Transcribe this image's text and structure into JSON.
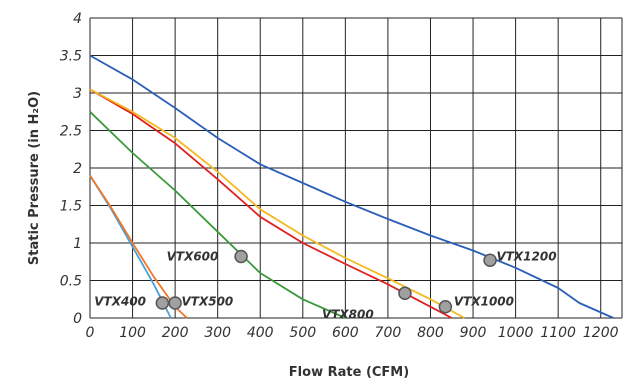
{
  "chart_data": {
    "type": "line",
    "title": "",
    "xlabel": "Flow Rate (CFM)",
    "ylabel": "Static Pressure (in H₂O)",
    "xlim": [
      0,
      1250
    ],
    "ylim": [
      0,
      4
    ],
    "xticks": [
      0,
      100,
      200,
      300,
      400,
      500,
      600,
      700,
      800,
      900,
      1000,
      1100,
      1200
    ],
    "yticks": [
      0,
      0.5,
      1,
      1.5,
      2,
      2.5,
      3,
      3.5,
      4
    ],
    "xtick_labels": [
      "0",
      "100",
      "200",
      "300",
      "400",
      "500",
      "600",
      "700",
      "800",
      "900",
      "1000",
      "1100",
      "1200"
    ],
    "ytick_labels": [
      "0",
      "0.5",
      "1",
      "1.5",
      "2",
      "2.5",
      "3",
      "3.5",
      "4"
    ],
    "grid": true,
    "legend": "none",
    "series": [
      {
        "name": "VTX400",
        "color": "#4a9fd8",
        "points": [
          [
            0,
            1.9
          ],
          [
            50,
            1.45
          ],
          [
            100,
            0.95
          ],
          [
            150,
            0.45
          ],
          [
            190,
            0
          ]
        ],
        "marker": [
          170,
          0.2
        ]
      },
      {
        "name": "VTX500",
        "color": "#f07828",
        "points": [
          [
            0,
            1.9
          ],
          [
            50,
            1.47
          ],
          [
            100,
            1.0
          ],
          [
            150,
            0.55
          ],
          [
            200,
            0.15
          ],
          [
            228,
            0
          ]
        ],
        "marker": [
          200,
          0.2
        ]
      },
      {
        "name": "VTX600",
        "color": "#3a9a3a",
        "points": [
          [
            0,
            2.75
          ],
          [
            100,
            2.2
          ],
          [
            200,
            1.7
          ],
          [
            300,
            1.15
          ],
          [
            400,
            0.6
          ],
          [
            500,
            0.25
          ],
          [
            600,
            0
          ]
        ],
        "marker": [
          355,
          0.82
        ]
      },
      {
        "name": "VTX800",
        "color": "#e02020",
        "points": [
          [
            0,
            3.05
          ],
          [
            100,
            2.72
          ],
          [
            200,
            2.33
          ],
          [
            300,
            1.85
          ],
          [
            400,
            1.35
          ],
          [
            500,
            1.0
          ],
          [
            600,
            0.72
          ],
          [
            700,
            0.45
          ],
          [
            800,
            0.15
          ],
          [
            850,
            0
          ]
        ],
        "marker": [
          740,
          0.33
        ]
      },
      {
        "name": "VTX1000",
        "color": "#f5b820",
        "points": [
          [
            0,
            3.05
          ],
          [
            100,
            2.75
          ],
          [
            200,
            2.4
          ],
          [
            300,
            1.95
          ],
          [
            400,
            1.45
          ],
          [
            500,
            1.1
          ],
          [
            600,
            0.8
          ],
          [
            700,
            0.53
          ],
          [
            800,
            0.25
          ],
          [
            880,
            0
          ]
        ],
        "marker": [
          835,
          0.15
        ]
      },
      {
        "name": "VTX1200",
        "color": "#2a5eb8",
        "points": [
          [
            0,
            3.5
          ],
          [
            100,
            3.18
          ],
          [
            200,
            2.8
          ],
          [
            300,
            2.4
          ],
          [
            400,
            2.05
          ],
          [
            500,
            1.8
          ],
          [
            600,
            1.55
          ],
          [
            700,
            1.32
          ],
          [
            800,
            1.1
          ],
          [
            900,
            0.9
          ],
          [
            1000,
            0.67
          ],
          [
            1100,
            0.4
          ],
          [
            1150,
            0.2
          ],
          [
            1230,
            0
          ]
        ],
        "marker": [
          940,
          0.77
        ]
      }
    ],
    "annotations": [
      {
        "text": "VTX400",
        "x": 10,
        "y": 0.22,
        "anchor": "start"
      },
      {
        "text": "VTX500",
        "x": 215,
        "y": 0.22,
        "anchor": "start"
      },
      {
        "text": "VTX600",
        "x": 180,
        "y": 0.82,
        "anchor": "start"
      },
      {
        "text": "VTX800",
        "x": 545,
        "y": 0.05,
        "anchor": "start"
      },
      {
        "text": "VTX1000",
        "x": 855,
        "y": 0.22,
        "anchor": "start"
      },
      {
        "text": "VTX1200",
        "x": 955,
        "y": 0.82,
        "anchor": "start"
      }
    ],
    "grid_color": "#222222",
    "marker_fill": "#a0a0a0",
    "marker_stroke": "#555555"
  }
}
